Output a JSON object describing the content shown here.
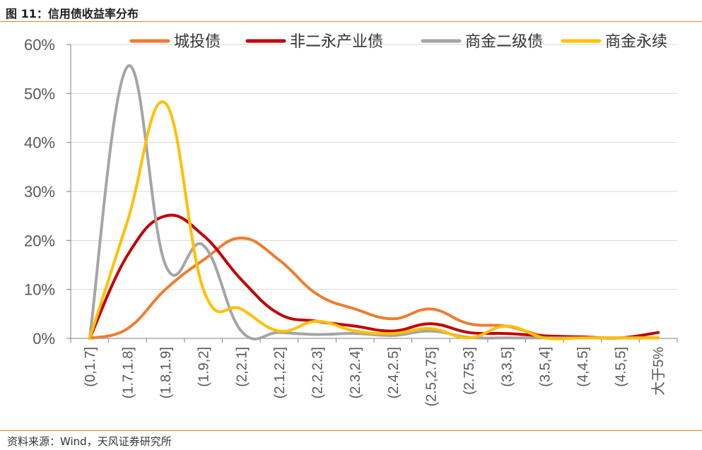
{
  "figure": {
    "title": "图 11：信用债收益率分布",
    "source": "资料来源：Wind，天风证券研究所"
  },
  "colors": {
    "accent_rule": "#d9893a",
    "grid": "#d9d9d9",
    "axis": "#808080"
  },
  "chart_data": {
    "type": "line",
    "smooth": true,
    "categories": [
      "(0,1.7]",
      "(1.7,1.8]",
      "(1.8,1.9]",
      "(1.9,2]",
      "(2,2.1]",
      "(2.1,2.2]",
      "(2.2,2.3]",
      "(2.3,2.4]",
      "(2.4,2.5]",
      "(2.5,2.75]",
      "(2.75,3]",
      "(3,3.5]",
      "(3.5,4]",
      "(4,4.5]",
      "(4.5,5]",
      "大于5%"
    ],
    "ylim": [
      0,
      60
    ],
    "yticks": [
      "0%",
      "10%",
      "20%",
      "30%",
      "40%",
      "50%",
      "60%"
    ],
    "ytick_values": [
      0,
      10,
      20,
      30,
      40,
      50,
      60
    ],
    "grid": true,
    "legend_position": "top",
    "series": [
      {
        "name": "城投债",
        "color": "#ed7d31",
        "values": [
          0,
          2,
          10,
          16,
          20.5,
          16,
          9,
          6,
          4,
          6,
          3,
          2.5,
          0.5,
          0.2,
          0.1,
          0.1
        ]
      },
      {
        "name": "非二永产业债",
        "color": "#c00000",
        "values": [
          0,
          17,
          25,
          21,
          12,
          5,
          3.5,
          2.5,
          1.5,
          3,
          1.2,
          1,
          0.5,
          0.3,
          0.1,
          1.2
        ]
      },
      {
        "name": "商金二级债",
        "color": "#a5a5a5",
        "values": [
          0,
          55.5,
          15,
          19,
          1.5,
          1.2,
          0.8,
          1,
          0.6,
          1.5,
          0.2,
          0.1,
          0.1,
          0.1,
          0.1,
          0.1
        ]
      },
      {
        "name": "商金永续",
        "color": "#ffc000",
        "values": [
          0,
          24,
          48,
          10,
          6,
          1.5,
          3.5,
          1.5,
          1,
          2,
          0.1,
          2.5,
          0.1,
          0.1,
          0.1,
          0.1
        ]
      }
    ]
  }
}
